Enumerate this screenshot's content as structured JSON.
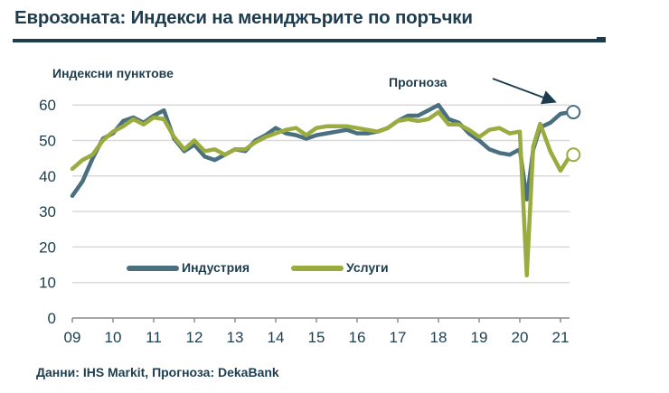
{
  "header": {
    "title": "Еврозоната: Индекси на мениджърите по поръчки"
  },
  "annotations": {
    "ylabel": "Индексни пунктове",
    "forecast_label": "Прогноза",
    "source": "Данни: IHS Markit, Прогноза: DekaBank"
  },
  "colors": {
    "industry": "#4a6f7f",
    "services": "#9aab3f",
    "text": "#1d3d4e",
    "grid": "#d9d9d9",
    "axis": "#8c8c8c"
  },
  "chart_data": {
    "type": "line",
    "title": "Еврозоната: Индекси на мениджърите по поръчки",
    "xlabel": "",
    "ylabel": "Индексни пунктове",
    "ylim": [
      0,
      60
    ],
    "yticks": [
      0,
      10,
      20,
      30,
      40,
      50,
      60
    ],
    "xticks": [
      "09",
      "10",
      "11",
      "12",
      "13",
      "14",
      "15",
      "16",
      "17",
      "18",
      "19",
      "20",
      "21"
    ],
    "grid": true,
    "legend_position": "inside-lower-left",
    "x": [
      2009.0,
      2009.25,
      2009.5,
      2009.75,
      2010.0,
      2010.25,
      2010.5,
      2010.75,
      2011.0,
      2011.25,
      2011.5,
      2011.75,
      2012.0,
      2012.25,
      2012.5,
      2012.75,
      2013.0,
      2013.25,
      2013.5,
      2013.75,
      2014.0,
      2014.25,
      2014.5,
      2014.75,
      2015.0,
      2015.25,
      2015.5,
      2015.75,
      2016.0,
      2016.25,
      2016.5,
      2016.75,
      2017.0,
      2017.25,
      2017.5,
      2017.75,
      2018.0,
      2018.25,
      2018.5,
      2018.75,
      2019.0,
      2019.25,
      2019.5,
      2019.75,
      2020.0,
      2020.17,
      2020.33,
      2020.5,
      2020.75,
      2021.0,
      2021.25
    ],
    "series": [
      {
        "name": "Индустрия",
        "values": [
          34.4,
          38.5,
          45.0,
          50.5,
          52.0,
          55.5,
          56.5,
          55.0,
          57.0,
          58.5,
          50.5,
          47.0,
          48.8,
          45.5,
          44.5,
          46.0,
          47.5,
          47.0,
          50.0,
          51.5,
          53.5,
          52.0,
          51.5,
          50.5,
          51.5,
          52.0,
          52.5,
          53.0,
          52.0,
          52.0,
          52.5,
          53.5,
          55.5,
          57.0,
          57.0,
          58.5,
          60.0,
          56.0,
          55.0,
          52.0,
          50.0,
          47.5,
          46.5,
          46.0,
          47.5,
          33.4,
          47.4,
          53.7,
          55.0,
          57.5,
          58.0
        ]
      },
      {
        "name": "Услуги",
        "values": [
          42.0,
          44.5,
          46.0,
          50.0,
          52.5,
          54.0,
          56.0,
          54.5,
          56.5,
          56.0,
          51.0,
          47.5,
          50.0,
          47.0,
          47.5,
          46.0,
          47.5,
          47.5,
          49.5,
          51.0,
          52.0,
          53.0,
          53.5,
          51.5,
          53.5,
          54.0,
          54.0,
          54.0,
          53.5,
          53.0,
          52.5,
          53.5,
          55.5,
          56.0,
          55.5,
          56.0,
          58.0,
          54.5,
          54.5,
          53.0,
          51.0,
          53.0,
          53.5,
          52.0,
          52.5,
          12.0,
          48.3,
          54.7,
          46.9,
          41.5,
          46.0
        ]
      }
    ],
    "forecast_markers": [
      {
        "series": "Индустрия",
        "x": 2021.25,
        "value": 58.0
      },
      {
        "series": "Услуги",
        "x": 2021.25,
        "value": 46.0
      }
    ]
  },
  "legend": {
    "items": [
      {
        "label": "Индустрия"
      },
      {
        "label": "Услуги"
      }
    ]
  }
}
